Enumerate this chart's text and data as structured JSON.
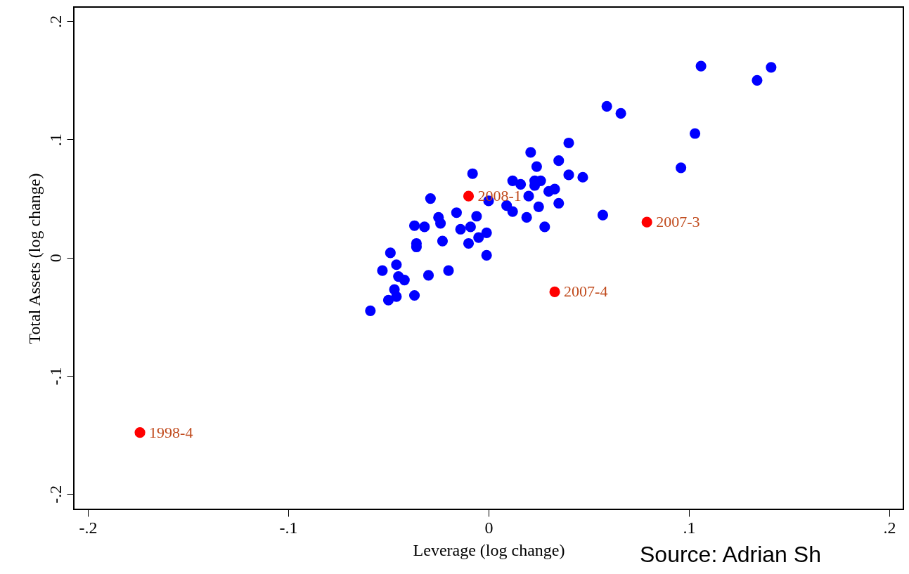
{
  "chart_data": {
    "type": "scatter",
    "xlabel": "Leverage (log change)",
    "ylabel": "Total Assets (log change)",
    "marker": "circle",
    "grid": false,
    "xlim": [
      -0.207,
      0.207
    ],
    "ylim": [
      -0.213,
      0.212
    ],
    "xticks": [
      {
        "value": -0.2,
        "label": "-.2"
      },
      {
        "value": -0.1,
        "label": "-.1"
      },
      0,
      {
        "value": 0.1,
        "label": ".1"
      },
      {
        "value": 0.2,
        "label": ".2"
      }
    ],
    "yticks": [
      {
        "value": -0.2,
        "label": "-.2"
      },
      {
        "value": -0.1,
        "label": "-.1"
      },
      0,
      {
        "value": 0.1,
        "label": ".1"
      },
      {
        "value": 0.2,
        "label": ".2"
      }
    ],
    "series": [
      {
        "color": "#0000ff",
        "x": [
          0.04,
          0.021,
          0.035,
          0.024,
          -0.008,
          0.04,
          0.047,
          0.012,
          0.016,
          0.023,
          0.026,
          0.023,
          0.03,
          0.033,
          -0.029,
          0.0,
          0.009,
          0.012,
          0.02,
          0.025,
          0.035,
          0.057,
          -0.016,
          -0.006,
          -0.025,
          -0.024,
          -0.037,
          -0.032,
          -0.014,
          -0.009,
          0.019,
          0.028,
          -0.023,
          -0.036,
          -0.036,
          -0.01,
          -0.005,
          -0.001,
          -0.001,
          -0.049,
          -0.046,
          -0.053,
          -0.045,
          -0.042,
          -0.03,
          -0.02,
          -0.047,
          -0.046,
          -0.05,
          -0.037,
          -0.059,
          0.106,
          0.141,
          0.134,
          0.059,
          0.066,
          0.103,
          0.096
        ],
        "values": [
          0.097,
          0.089,
          0.082,
          0.077,
          0.071,
          0.07,
          0.068,
          0.065,
          0.062,
          0.065,
          0.065,
          0.061,
          0.056,
          0.058,
          0.05,
          0.048,
          0.044,
          0.039,
          0.052,
          0.043,
          0.046,
          0.036,
          0.038,
          0.035,
          0.034,
          0.029,
          0.027,
          0.026,
          0.024,
          0.026,
          0.034,
          0.026,
          0.014,
          0.012,
          0.009,
          0.012,
          0.017,
          0.021,
          0.002,
          0.004,
          -0.006,
          -0.011,
          -0.016,
          -0.019,
          -0.015,
          -0.011,
          -0.027,
          -0.033,
          -0.036,
          -0.032,
          -0.045,
          0.162,
          0.161,
          0.15,
          0.128,
          0.122,
          0.105,
          0.076
        ]
      },
      {
        "color": "#ff0000",
        "x": [
          -0.01,
          0.033,
          0.079,
          -0.174
        ],
        "values": [
          0.052,
          -0.029,
          0.03,
          -0.148
        ]
      }
    ],
    "annotations": [
      {
        "text": "2008-1",
        "x": -0.01,
        "y": 0.052
      },
      {
        "text": "2007-4",
        "x": 0.033,
        "y": -0.029
      },
      {
        "text": "2007-3",
        "x": 0.079,
        "y": 0.03
      },
      {
        "text": "1998-4",
        "x": -0.174,
        "y": -0.148
      },
      "Source: Adrian Sh"
    ]
  }
}
